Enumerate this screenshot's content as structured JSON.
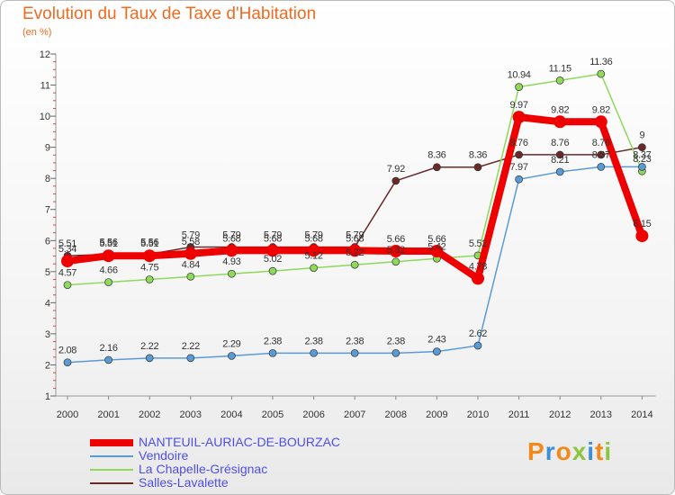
{
  "chart_data": {
    "type": "line",
    "title": "Evolution du Taux de Taxe d'Habitation",
    "subtitle": "(en %)",
    "categories": [
      "2000",
      "2001",
      "2002",
      "2003",
      "2004",
      "2005",
      "2006",
      "2007",
      "2008",
      "2009",
      "2010",
      "2011",
      "2012",
      "2013",
      "2014"
    ],
    "ylim": [
      1,
      12
    ],
    "yticks": [
      1,
      2,
      3,
      4,
      5,
      6,
      7,
      8,
      9,
      10,
      11,
      12
    ],
    "grid": false,
    "legend_position": "bottom",
    "series": [
      {
        "name": "Salles-Lavalette",
        "color": "#6b2a2a",
        "width": 1.5,
        "marker": 4,
        "values": [
          5.51,
          5.56,
          5.56,
          5.79,
          5.79,
          5.79,
          5.79,
          5.79,
          7.92,
          8.36,
          8.36,
          8.76,
          8.76,
          8.76,
          9
        ],
        "labels": [
          "5.51",
          "5.56",
          "5.56",
          "5.79",
          "5.79",
          "5.79",
          "5.79",
          "5.79",
          "7.92",
          "8.36",
          "8.36",
          "8.76",
          "8.76",
          "8.76",
          "9"
        ]
      },
      {
        "name": "La Chapelle-Grésignac",
        "color": "#8ed85a",
        "width": 1.5,
        "marker": 4,
        "values": [
          4.57,
          4.66,
          4.75,
          4.84,
          4.93,
          5.02,
          5.12,
          5.22,
          5.32,
          5.42,
          5.52,
          10.94,
          11.15,
          11.36,
          8.23
        ],
        "labels": [
          "4.57",
          "4.66",
          "4.75",
          "4.84",
          "4.93",
          "5.02",
          "5.12",
          "5.22",
          "5.32",
          "5.42",
          "5.52",
          "10.94",
          "11.15",
          "11.36",
          "8.23"
        ]
      },
      {
        "name": "Vendoire",
        "color": "#5b9bd5",
        "width": 1.5,
        "marker": 4,
        "values": [
          2.08,
          2.16,
          2.22,
          2.22,
          2.29,
          2.38,
          2.38,
          2.38,
          2.38,
          2.43,
          2.62,
          7.97,
          8.21,
          8.37,
          8.37
        ],
        "labels": [
          "2.08",
          "2.16",
          "2.22",
          "2.22",
          "2.29",
          "2.38",
          "2.38",
          "2.38",
          "2.38",
          "2.43",
          "2.62",
          "7.97",
          "8.21",
          "8.37",
          "8.37"
        ]
      },
      {
        "name": "NANTEUIL-AURIAC-DE-BOURZAC",
        "color": "#ee0000",
        "width": 8,
        "marker": 7,
        "values": [
          5.34,
          5.51,
          5.51,
          5.58,
          5.68,
          5.68,
          5.68,
          5.68,
          5.66,
          5.66,
          4.78,
          9.97,
          9.82,
          9.82,
          6.15
        ],
        "labels": [
          "5.34",
          "5.51",
          "5.51",
          "5.58",
          "5.68",
          "5.68",
          "5.68",
          "5.68",
          "5.66",
          "5.66",
          "4.78",
          "9.97",
          "9.82",
          "9.82",
          "6.15"
        ]
      }
    ]
  },
  "legend": {
    "items": [
      {
        "name": "NANTEUIL-AURIAC-DE-BOURZAC",
        "color": "#ee0000",
        "thickness": 8
      },
      {
        "name": "Vendoire",
        "color": "#5b9bd5",
        "thickness": 2
      },
      {
        "name": "La Chapelle-Grésignac",
        "color": "#8ed85a",
        "thickness": 2
      },
      {
        "name": "Salles-Lavalette",
        "color": "#6b2a2a",
        "thickness": 2
      }
    ],
    "label_color": "#4f4fe8"
  },
  "logo": {
    "letters": [
      {
        "ch": "P",
        "color": "#f28a1b"
      },
      {
        "ch": "r",
        "color": "#3a8fd6"
      },
      {
        "ch": "o",
        "color": "#f28a1b"
      },
      {
        "ch": "x",
        "color": "#8cc63f"
      },
      {
        "ch": "i",
        "color": "#3a8fd6"
      },
      {
        "ch": "t",
        "color": "#f28a1b"
      },
      {
        "ch": "i",
        "color": "#8cc63f"
      }
    ]
  }
}
